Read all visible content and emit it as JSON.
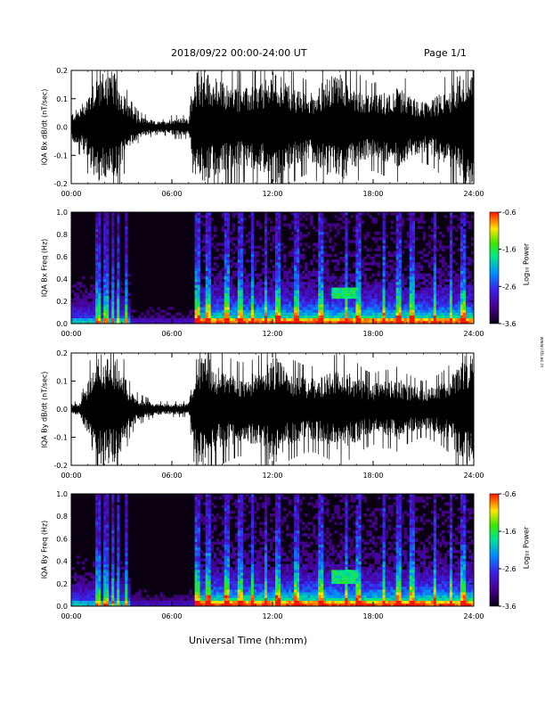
{
  "header": {
    "title": "2018/09/22  00:00-24:00 UT",
    "page": "Page 1/1"
  },
  "footer": {
    "xlabel": "Universal Time (hh:mm)"
  },
  "side_note": "www.iitb.ac.in",
  "chart_data": [
    {
      "type": "line",
      "title": "",
      "ylabel": "IQA Bx dB/dt (nT/sec)",
      "xlim": [
        0,
        24
      ],
      "ylim": [
        -0.2,
        0.2
      ],
      "x_ticks": [
        "00:00",
        "06:00",
        "12:00",
        "18:00",
        "24:00"
      ],
      "y_ticks": [
        "-0.2",
        "-0.1",
        "0.0",
        "0.1",
        "0.2"
      ],
      "envelope": {
        "x": [
          0,
          0.5,
          1,
          1.5,
          2,
          2.5,
          3,
          3.5,
          4,
          4.5,
          5,
          5.5,
          6,
          6.5,
          7,
          7.5,
          8,
          8.5,
          9,
          9.5,
          10,
          10.5,
          11,
          11.5,
          12,
          12.5,
          13,
          13.5,
          14,
          14.5,
          15,
          15.5,
          16,
          16.5,
          17,
          17.5,
          18,
          18.5,
          19,
          19.5,
          20,
          20.5,
          21,
          21.5,
          22,
          22.5,
          23,
          23.5,
          24
        ],
        "amplitude": [
          0.05,
          0.07,
          0.12,
          0.2,
          0.2,
          0.2,
          0.14,
          0.07,
          0.04,
          0.03,
          0.02,
          0.02,
          0.03,
          0.03,
          0.03,
          0.2,
          0.2,
          0.18,
          0.16,
          0.15,
          0.14,
          0.14,
          0.15,
          0.16,
          0.2,
          0.19,
          0.15,
          0.13,
          0.12,
          0.13,
          0.16,
          0.18,
          0.2,
          0.17,
          0.14,
          0.12,
          0.11,
          0.12,
          0.13,
          0.14,
          0.12,
          0.1,
          0.09,
          0.1,
          0.12,
          0.13,
          0.18,
          0.2,
          0.2
        ]
      }
    },
    {
      "type": "heatmap",
      "title": "",
      "ylabel": "IQA Bx Freq (Hz)",
      "xlim": [
        0,
        24
      ],
      "ylim": [
        0,
        1
      ],
      "x_ticks": [
        "00:00",
        "06:00",
        "12:00",
        "18:00",
        "24:00"
      ],
      "y_ticks": [
        "0.0",
        "0.2",
        "0.4",
        "0.6",
        "0.8",
        "1.0"
      ],
      "colorbar": {
        "label": "Log₁₀ Power",
        "ticks": [
          "-0.6",
          "-1.6",
          "-2.6",
          "-3.6"
        ],
        "range": [
          -3.6,
          -0.6
        ]
      },
      "bright_columns_h": [
        1.6,
        2.1,
        2.5,
        2.8,
        3.3,
        7.5,
        8.2,
        9.3,
        10.1,
        10.8,
        11.6,
        12.3,
        13.4,
        14.9,
        16.4,
        17.1,
        18.6,
        19.5,
        20.3,
        21.7,
        22.6,
        23.4
      ],
      "feature": {
        "x": [
          15.5,
          17.0
        ],
        "y": [
          0.22,
          0.32
        ],
        "note": "band near 0.3 Hz"
      }
    },
    {
      "type": "line",
      "title": "",
      "ylabel": "IQA By dB/dt (nT/sec)",
      "xlim": [
        0,
        24
      ],
      "ylim": [
        -0.2,
        0.2
      ],
      "x_ticks": [
        "00:00",
        "06:00",
        "12:00",
        "18:00",
        "24:00"
      ],
      "y_ticks": [
        "-0.2",
        "-0.1",
        "0.0",
        "0.1",
        "0.2"
      ],
      "envelope": {
        "x": [
          0,
          0.5,
          1,
          1.5,
          2,
          2.5,
          3,
          3.5,
          4,
          4.5,
          5,
          5.5,
          6,
          6.5,
          7,
          7.5,
          8,
          8.5,
          9,
          9.5,
          10,
          10.5,
          11,
          11.5,
          12,
          12.5,
          13,
          13.5,
          14,
          14.5,
          15,
          15.5,
          16,
          16.5,
          17,
          17.5,
          18,
          18.5,
          19,
          19.5,
          20,
          20.5,
          21,
          21.5,
          22,
          22.5,
          23,
          23.5,
          24
        ],
        "amplitude": [
          0.02,
          0.02,
          0.1,
          0.2,
          0.2,
          0.2,
          0.15,
          0.07,
          0.04,
          0.03,
          0.02,
          0.02,
          0.02,
          0.02,
          0.02,
          0.2,
          0.2,
          0.16,
          0.14,
          0.13,
          0.12,
          0.12,
          0.13,
          0.15,
          0.2,
          0.17,
          0.13,
          0.12,
          0.11,
          0.11,
          0.12,
          0.13,
          0.15,
          0.13,
          0.12,
          0.1,
          0.09,
          0.1,
          0.1,
          0.11,
          0.09,
          0.08,
          0.07,
          0.08,
          0.09,
          0.11,
          0.16,
          0.2,
          0.2
        ]
      }
    },
    {
      "type": "heatmap",
      "title": "",
      "ylabel": "IQA By Freq (Hz)",
      "xlim": [
        0,
        24
      ],
      "ylim": [
        0,
        1
      ],
      "x_ticks": [
        "00:00",
        "06:00",
        "12:00",
        "18:00",
        "24:00"
      ],
      "y_ticks": [
        "0.0",
        "0.2",
        "0.4",
        "0.6",
        "0.8",
        "1.0"
      ],
      "colorbar": {
        "label": "Log₁₀ Power",
        "ticks": [
          "-0.6",
          "-1.6",
          "-2.6",
          "-3.6"
        ],
        "range": [
          -3.6,
          -0.6
        ]
      },
      "bright_columns_h": [
        1.6,
        2.1,
        2.5,
        2.8,
        3.3,
        7.5,
        8.2,
        9.3,
        10.1,
        10.8,
        11.6,
        12.3,
        13.4,
        14.9,
        16.4,
        17.1,
        18.6,
        19.5,
        20.3,
        21.7,
        22.6,
        23.4
      ],
      "feature": {
        "x": [
          15.5,
          17.0
        ],
        "y": [
          0.2,
          0.32
        ],
        "note": "band near 0.28 Hz"
      }
    }
  ]
}
